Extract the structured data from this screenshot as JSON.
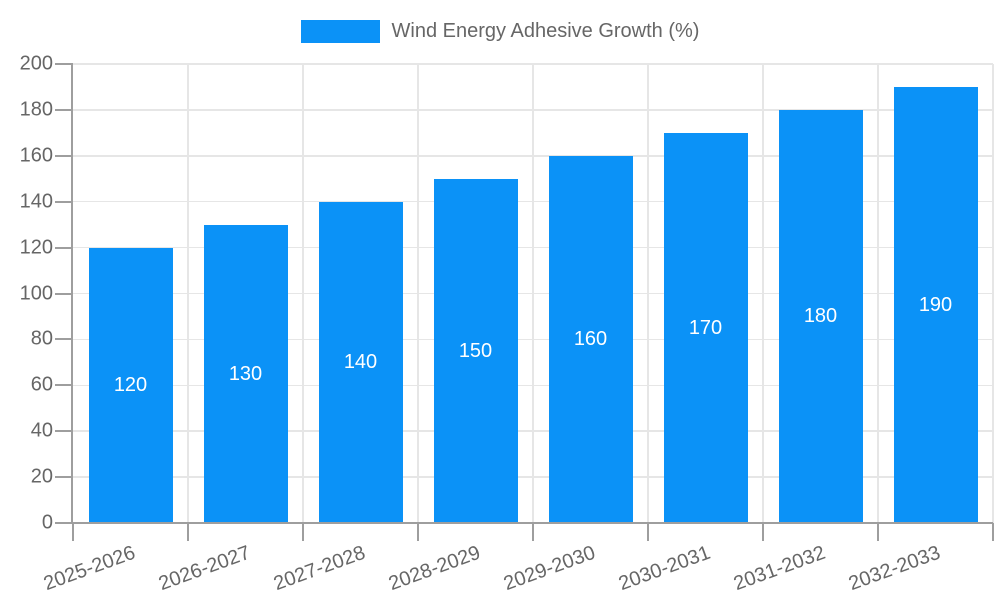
{
  "legend": {
    "label": "Wind Energy Adhesive Growth (%)",
    "swatch_color": "#0b92f7"
  },
  "colors": {
    "bar": "#0b92f7",
    "bar_label": "#ffffff",
    "axis": "#9e9e9e",
    "grid": "#e6e6e6",
    "text": "#666666",
    "background": "#ffffff"
  },
  "chart_data": {
    "type": "bar",
    "categories": [
      "2025-2026",
      "2026-2027",
      "2027-2028",
      "2028-2029",
      "2029-2030",
      "2030-2031",
      "2031-2032",
      "2032-2033"
    ],
    "series": [
      {
        "name": "Wind Energy Adhesive Growth (%)",
        "color": "#0b92f7",
        "values": [
          120,
          130,
          140,
          150,
          160,
          170,
          180,
          190
        ]
      }
    ],
    "bar_value_labels": [
      120,
      130,
      140,
      150,
      160,
      170,
      180,
      190
    ],
    "ylim": [
      0,
      200
    ],
    "ytick_step": 20,
    "yticks": [
      0,
      20,
      40,
      60,
      80,
      100,
      120,
      140,
      160,
      180,
      200
    ],
    "grid": true,
    "legend_position": "top",
    "x_label_rotation_deg": -20
  }
}
